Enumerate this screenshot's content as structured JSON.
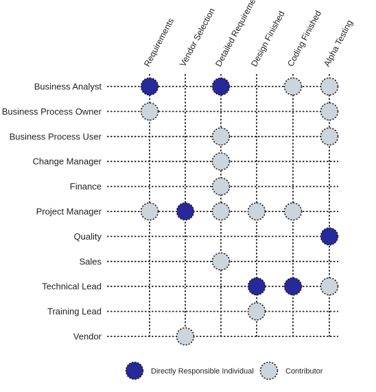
{
  "colors": {
    "responsible_fill": "#27289a",
    "contributor_fill": "#cdd5dc",
    "grid_line": "#222222",
    "text": "#222222"
  },
  "columns": [
    "Requirements",
    "Vendor Selection",
    "Detailed Requirements",
    "Design Finished",
    "Coding Finished",
    "Alpha Testing"
  ],
  "rows": [
    "Business Analyst",
    "Business Process Owner",
    "Business Process User",
    "Change Manager",
    "Finance",
    "Project Manager",
    "Quality",
    "Sales",
    "Technical Lead",
    "Training Lead",
    "Vendor"
  ],
  "assignments": [
    {
      "row": "Business Analyst",
      "column": "Requirements",
      "role": "responsible"
    },
    {
      "row": "Business Analyst",
      "column": "Detailed Requirements",
      "role": "responsible"
    },
    {
      "row": "Business Analyst",
      "column": "Coding Finished",
      "role": "contributor"
    },
    {
      "row": "Business Analyst",
      "column": "Alpha Testing",
      "role": "contributor"
    },
    {
      "row": "Business Process Owner",
      "column": "Requirements",
      "role": "contributor"
    },
    {
      "row": "Business Process Owner",
      "column": "Alpha Testing",
      "role": "contributor"
    },
    {
      "row": "Business Process User",
      "column": "Detailed Requirements",
      "role": "contributor"
    },
    {
      "row": "Business Process User",
      "column": "Alpha Testing",
      "role": "contributor"
    },
    {
      "row": "Change Manager",
      "column": "Detailed Requirements",
      "role": "contributor"
    },
    {
      "row": "Finance",
      "column": "Detailed Requirements",
      "role": "contributor"
    },
    {
      "row": "Project Manager",
      "column": "Requirements",
      "role": "contributor"
    },
    {
      "row": "Project Manager",
      "column": "Vendor Selection",
      "role": "responsible"
    },
    {
      "row": "Project Manager",
      "column": "Detailed Requirements",
      "role": "contributor"
    },
    {
      "row": "Project Manager",
      "column": "Design Finished",
      "role": "contributor"
    },
    {
      "row": "Project Manager",
      "column": "Coding Finished",
      "role": "contributor"
    },
    {
      "row": "Quality",
      "column": "Alpha Testing",
      "role": "responsible"
    },
    {
      "row": "Sales",
      "column": "Detailed Requirements",
      "role": "contributor"
    },
    {
      "row": "Technical Lead",
      "column": "Design Finished",
      "role": "responsible"
    },
    {
      "row": "Technical Lead",
      "column": "Coding Finished",
      "role": "responsible"
    },
    {
      "row": "Technical Lead",
      "column": "Alpha Testing",
      "role": "contributor"
    },
    {
      "row": "Training Lead",
      "column": "Design Finished",
      "role": "contributor"
    },
    {
      "row": "Vendor",
      "column": "Vendor Selection",
      "role": "contributor"
    }
  ],
  "legend": {
    "responsible_label": "Directly Responsible Individual",
    "contributor_label": "Contributor"
  }
}
